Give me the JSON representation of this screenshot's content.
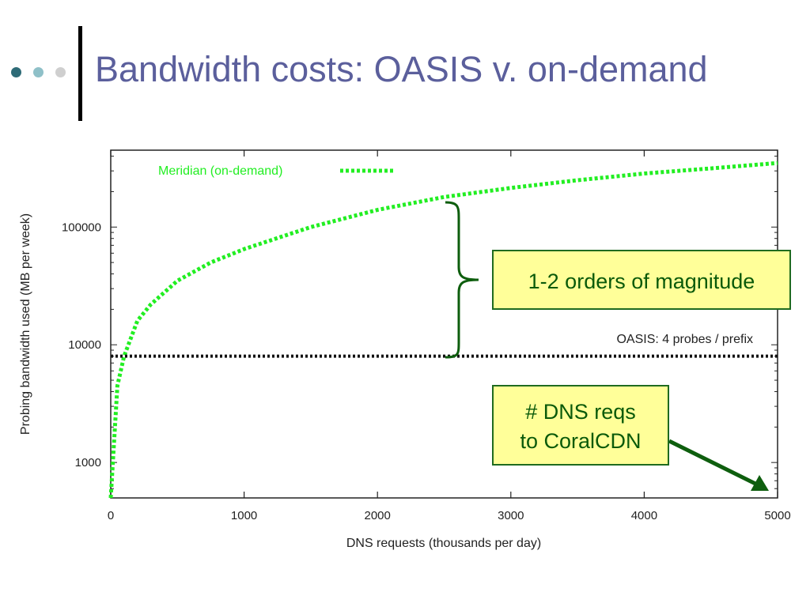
{
  "slide": {
    "title": "Bandwidth costs: OASIS v. on-demand",
    "bullet_colors": [
      "#2e6b77",
      "#8fc0c8",
      "#cfcfcf"
    ]
  },
  "callouts": {
    "magnitude": "1-2 orders of magnitude",
    "dns_line1": "# DNS reqs",
    "dns_line2": "to CoralCDN"
  },
  "colors": {
    "meridian": "#22ee22",
    "oasis": "#111111",
    "callout_border": "#1f6b1f",
    "callout_fill": "#ffff99",
    "callout_text": "#0a5a0a",
    "arrow": "#0e5e0e",
    "brace": "#0e5e0e",
    "title": "#5b5f9c"
  },
  "chart_data": {
    "type": "line",
    "xlabel": "DNS requests (thousands per day)",
    "ylabel": "Probing bandwidth used (MB per week)",
    "xlim": [
      0,
      5000
    ],
    "ylim": [
      500,
      450000
    ],
    "yscale": "log",
    "x_ticks": [
      0,
      1000,
      2000,
      3000,
      4000,
      5000
    ],
    "x_tick_labels": [
      "0",
      "1000",
      "2000",
      "3000",
      "4000",
      "5000"
    ],
    "y_ticks": [
      1000,
      10000,
      100000
    ],
    "y_tick_labels": [
      "1000",
      "10000",
      "100000"
    ],
    "grid": false,
    "legend_position": "top-left",
    "series": [
      {
        "name": "Meridian (on-demand)",
        "style": "dotted",
        "x": [
          0,
          50,
          100,
          200,
          300,
          500,
          750,
          1000,
          1500,
          2000,
          2500,
          3000,
          3500,
          4000,
          4500,
          5000
        ],
        "y": [
          500,
          4500,
          8000,
          16000,
          22000,
          35000,
          50000,
          65000,
          100000,
          140000,
          180000,
          215000,
          250000,
          285000,
          315000,
          350000
        ]
      },
      {
        "name": "OASIS:  4  probes / prefix",
        "style": "dotted",
        "x": [
          0,
          5000
        ],
        "y": [
          8000,
          8000
        ]
      }
    ],
    "annotations": [
      "1-2 orders of magnitude",
      "# DNS reqs to CoralCDN"
    ]
  }
}
